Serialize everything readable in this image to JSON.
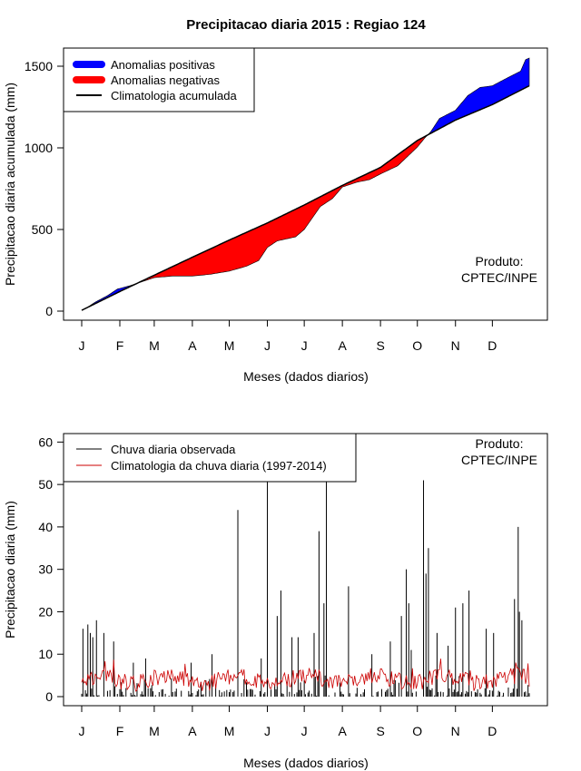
{
  "title": "Precipitacao diaria 2015 : Regiao 124",
  "colors": {
    "positive": "#0000ff",
    "negative": "#ff0000",
    "climatology_line": "#000000",
    "observed_bars": "#000000",
    "daily_climatology": "#cc0000"
  },
  "chart_data": [
    {
      "type": "area",
      "name": "accumulated",
      "ylabel": "Precipitacao diaria acumulada (mm)",
      "xlabel": "Meses (dados diarios)",
      "xlim": [
        1,
        365
      ],
      "ylim": [
        0,
        1550
      ],
      "yticks": [
        0,
        500,
        1000,
        1500
      ],
      "month_labels": [
        "J",
        "F",
        "M",
        "A",
        "M",
        "J",
        "J",
        "A",
        "S",
        "O",
        "N",
        "D"
      ],
      "month_start_days": [
        1,
        32,
        60,
        91,
        121,
        152,
        182,
        213,
        244,
        274,
        305,
        335
      ],
      "legend": [
        "Anomalias positivas",
        "Anomalias negativas",
        "Climatologia acumulada"
      ],
      "annotation": [
        "Produto:",
        "CPTEC/INPE"
      ],
      "climatology_knots": [
        [
          1,
          5
        ],
        [
          32,
          120
        ],
        [
          60,
          220
        ],
        [
          91,
          330
        ],
        [
          121,
          435
        ],
        [
          152,
          540
        ],
        [
          182,
          650
        ],
        [
          213,
          770
        ],
        [
          244,
          880
        ],
        [
          274,
          1045
        ],
        [
          305,
          1170
        ],
        [
          335,
          1265
        ],
        [
          365,
          1380
        ]
      ],
      "observed_knots": [
        [
          1,
          5
        ],
        [
          5,
          20
        ],
        [
          12,
          55
        ],
        [
          22,
          95
        ],
        [
          30,
          135
        ],
        [
          40,
          155
        ],
        [
          50,
          180
        ],
        [
          60,
          205
        ],
        [
          75,
          215
        ],
        [
          91,
          215
        ],
        [
          105,
          225
        ],
        [
          121,
          245
        ],
        [
          135,
          275
        ],
        [
          145,
          310
        ],
        [
          152,
          390
        ],
        [
          160,
          430
        ],
        [
          175,
          455
        ],
        [
          182,
          500
        ],
        [
          195,
          640
        ],
        [
          205,
          690
        ],
        [
          213,
          760
        ],
        [
          225,
          790
        ],
        [
          235,
          805
        ],
        [
          244,
          840
        ],
        [
          258,
          890
        ],
        [
          265,
          940
        ],
        [
          274,
          1005
        ],
        [
          280,
          1060
        ],
        [
          285,
          1100
        ],
        [
          292,
          1180
        ],
        [
          305,
          1230
        ],
        [
          315,
          1320
        ],
        [
          325,
          1370
        ],
        [
          335,
          1380
        ],
        [
          345,
          1420
        ],
        [
          358,
          1470
        ],
        [
          362,
          1540
        ],
        [
          365,
          1550
        ]
      ]
    },
    {
      "type": "bar",
      "name": "daily",
      "ylabel": "Precipitacao diaria (mm)",
      "xlabel": "Meses (dados diarios)",
      "xlim": [
        1,
        365
      ],
      "ylim": [
        0,
        62
      ],
      "yticks": [
        0,
        10,
        20,
        30,
        40,
        50,
        60
      ],
      "month_labels": [
        "J",
        "F",
        "M",
        "A",
        "M",
        "J",
        "J",
        "A",
        "S",
        "O",
        "N",
        "D"
      ],
      "month_start_days": [
        1,
        32,
        60,
        91,
        121,
        152,
        182,
        213,
        244,
        274,
        305,
        335
      ],
      "legend": [
        "Chuva diaria observada",
        "Climatologia da chuva diaria (1997-2014)"
      ],
      "annotation": [
        "Produto:",
        "CPTEC/INPE"
      ],
      "peaks": [
        [
          2,
          16
        ],
        [
          6,
          17
        ],
        [
          8,
          15
        ],
        [
          10,
          14
        ],
        [
          13,
          18
        ],
        [
          19,
          15
        ],
        [
          27,
          13
        ],
        [
          43,
          8
        ],
        [
          53,
          9
        ],
        [
          90,
          8
        ],
        [
          107,
          10
        ],
        [
          128,
          44
        ],
        [
          147,
          9
        ],
        [
          152,
          62
        ],
        [
          160,
          19
        ],
        [
          163,
          25
        ],
        [
          172,
          14
        ],
        [
          177,
          14
        ],
        [
          190,
          15
        ],
        [
          194,
          39
        ],
        [
          198,
          22
        ],
        [
          200,
          62
        ],
        [
          218,
          26
        ],
        [
          237,
          10
        ],
        [
          252,
          13
        ],
        [
          261,
          19
        ],
        [
          265,
          30
        ],
        [
          267,
          22
        ],
        [
          269,
          11
        ],
        [
          279,
          51
        ],
        [
          281,
          29
        ],
        [
          283,
          35
        ],
        [
          290,
          15
        ],
        [
          299,
          12
        ],
        [
          305,
          21
        ],
        [
          311,
          22
        ],
        [
          316,
          25
        ],
        [
          330,
          16
        ],
        [
          336,
          15
        ],
        [
          353,
          23
        ],
        [
          356,
          40
        ],
        [
          357,
          20
        ],
        [
          359,
          18
        ]
      ],
      "climatology_mean": 4
    }
  ]
}
